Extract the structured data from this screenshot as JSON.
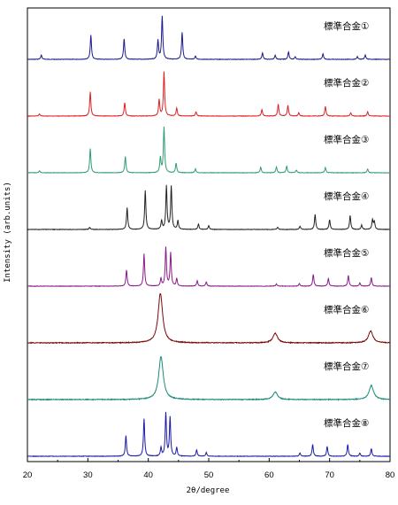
{
  "chart_data": {
    "type": "line",
    "xlabel": "2θ/degree",
    "ylabel": "Intensity (arb.units)",
    "xlim": [
      20,
      80
    ],
    "xticks": [
      20,
      30,
      40,
      50,
      60,
      70,
      80
    ],
    "grid": false,
    "stacked": true,
    "series": [
      {
        "name": "標準合金①",
        "color": "#1a1a8c",
        "peaks": [
          [
            22.3,
            0.08
          ],
          [
            30.5,
            0.45
          ],
          [
            36.0,
            0.38
          ],
          [
            41.6,
            0.35
          ],
          [
            42.3,
            0.8
          ],
          [
            45.6,
            0.5
          ],
          [
            47.8,
            0.06
          ],
          [
            58.9,
            0.12
          ],
          [
            61.0,
            0.08
          ],
          [
            63.2,
            0.14
          ],
          [
            64.3,
            0.05
          ],
          [
            68.9,
            0.1
          ],
          [
            74.6,
            0.05
          ],
          [
            75.9,
            0.08
          ]
        ],
        "width": 0.12
      },
      {
        "name": "標準合金②",
        "color": "#e02020",
        "peaks": [
          [
            22.0,
            0.04
          ],
          [
            30.4,
            0.45
          ],
          [
            36.1,
            0.25
          ],
          [
            41.8,
            0.3
          ],
          [
            42.6,
            0.82
          ],
          [
            44.7,
            0.15
          ],
          [
            47.9,
            0.08
          ],
          [
            58.8,
            0.12
          ],
          [
            61.5,
            0.22
          ],
          [
            63.1,
            0.2
          ],
          [
            64.9,
            0.06
          ],
          [
            69.3,
            0.18
          ],
          [
            73.5,
            0.06
          ],
          [
            76.3,
            0.08
          ]
        ],
        "width": 0.12
      },
      {
        "name": "標準合金③",
        "color": "#2e9e72",
        "peaks": [
          [
            22.0,
            0.04
          ],
          [
            30.4,
            0.45
          ],
          [
            36.2,
            0.3
          ],
          [
            42.0,
            0.28
          ],
          [
            42.6,
            0.85
          ],
          [
            44.6,
            0.18
          ],
          [
            47.8,
            0.07
          ],
          [
            58.6,
            0.1
          ],
          [
            61.2,
            0.11
          ],
          [
            62.9,
            0.12
          ],
          [
            64.5,
            0.05
          ],
          [
            69.3,
            0.1
          ],
          [
            76.3,
            0.07
          ]
        ],
        "width": 0.12
      },
      {
        "name": "標準合金④",
        "color": "#222222",
        "peaks": [
          [
            30.3,
            0.04
          ],
          [
            36.5,
            0.4
          ],
          [
            39.5,
            0.72
          ],
          [
            42.2,
            0.16
          ],
          [
            43.0,
            0.8
          ],
          [
            43.8,
            0.8
          ],
          [
            44.9,
            0.16
          ],
          [
            48.3,
            0.1
          ],
          [
            50.0,
            0.07
          ],
          [
            61.4,
            0.04
          ],
          [
            65.1,
            0.06
          ],
          [
            67.6,
            0.28
          ],
          [
            70.0,
            0.18
          ],
          [
            73.4,
            0.26
          ],
          [
            75.3,
            0.08
          ],
          [
            77.1,
            0.18
          ],
          [
            77.4,
            0.14
          ]
        ],
        "width": 0.12
      },
      {
        "name": "標準合金⑤",
        "color": "#8a1a8a",
        "peaks": [
          [
            36.4,
            0.3
          ],
          [
            39.3,
            0.6
          ],
          [
            42.1,
            0.14
          ],
          [
            42.9,
            0.72
          ],
          [
            43.7,
            0.62
          ],
          [
            44.7,
            0.14
          ],
          [
            48.1,
            0.1
          ],
          [
            49.6,
            0.08
          ],
          [
            61.2,
            0.04
          ],
          [
            65.0,
            0.05
          ],
          [
            67.3,
            0.22
          ],
          [
            69.8,
            0.14
          ],
          [
            73.1,
            0.2
          ],
          [
            75.0,
            0.06
          ],
          [
            76.9,
            0.16
          ]
        ],
        "width": 0.12
      },
      {
        "name": "標準合金⑥",
        "color": "#7a0a0a",
        "peaks": [
          [
            42.0,
            0.92
          ],
          [
            61.0,
            0.18
          ],
          [
            76.8,
            0.22
          ]
        ],
        "width": 0.45
      },
      {
        "name": "標準合金⑦",
        "color": "#1a8a7a",
        "peaks": [
          [
            42.1,
            0.8
          ],
          [
            61.0,
            0.14
          ],
          [
            76.9,
            0.26
          ]
        ],
        "width": 0.45
      },
      {
        "name": "標準合金⑧",
        "color": "#1a1aa8",
        "peaks": [
          [
            36.3,
            0.38
          ],
          [
            39.3,
            0.7
          ],
          [
            42.1,
            0.16
          ],
          [
            42.9,
            0.8
          ],
          [
            43.6,
            0.72
          ],
          [
            44.7,
            0.16
          ],
          [
            48.0,
            0.12
          ],
          [
            49.6,
            0.07
          ],
          [
            65.1,
            0.06
          ],
          [
            67.2,
            0.22
          ],
          [
            69.6,
            0.18
          ],
          [
            73.0,
            0.22
          ],
          [
            75.0,
            0.06
          ],
          [
            76.9,
            0.14
          ]
        ],
        "width": 0.12
      }
    ]
  }
}
